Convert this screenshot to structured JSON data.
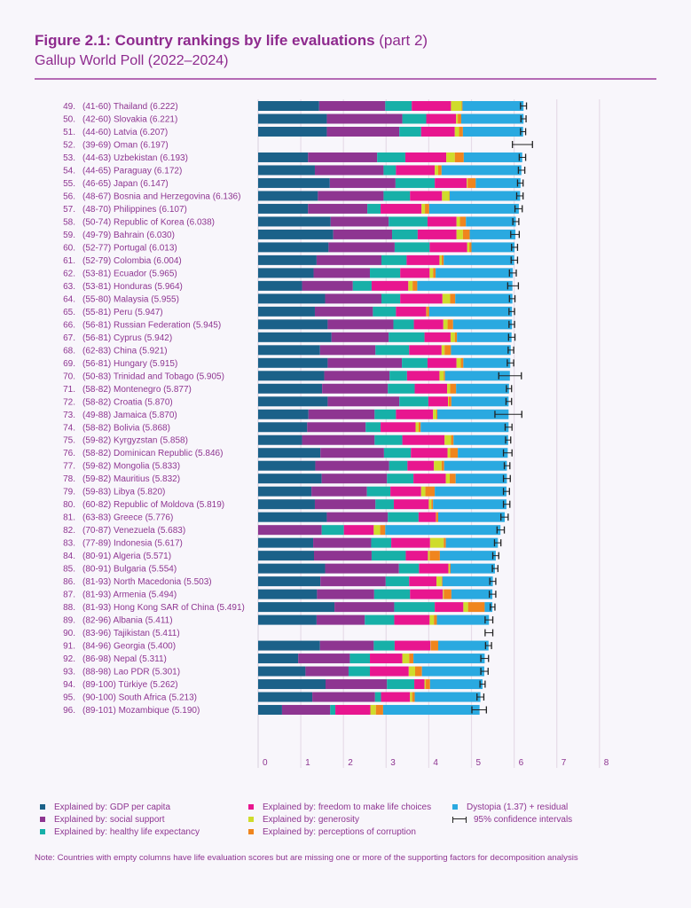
{
  "header": {
    "title_bold": "Figure 2.1: Country rankings by life evaluations",
    "title_part": "(part 2)",
    "subtitle": "Gallup World Poll (2022–2024)"
  },
  "colors": {
    "gdp": "#1b6189",
    "social": "#8e3591",
    "health": "#17b0a8",
    "freedom": "#e8168f",
    "generosity": "#cfdc2c",
    "corruption": "#f0851e",
    "dystopia": "#2aa9e0",
    "text": "#8e3591"
  },
  "legend": [
    {
      "key": "gdp",
      "label": "Explained by: GDP per capita"
    },
    {
      "key": "social",
      "label": "Explained by: social support"
    },
    {
      "key": "health",
      "label": "Explained by: healthy life expectancy"
    },
    {
      "key": "freedom",
      "label": "Explained by: freedom to make life choices"
    },
    {
      "key": "generosity",
      "label": "Explained by: generosity"
    },
    {
      "key": "corruption",
      "label": "Explained by: perceptions of corruption"
    },
    {
      "key": "dystopia",
      "label": "Dystopia (1.37) + residual"
    },
    {
      "key": "ci",
      "label": "95% confidence intervals"
    }
  ],
  "note": "Note: Countries with empty columns have life evaluation scores but are missing one or more of the supporting factors for decomposition analysis",
  "chart_data": {
    "type": "bar",
    "orientation": "horizontal",
    "stacked": true,
    "xlim": [
      0,
      8
    ],
    "xticks": [
      "0",
      "1",
      "2",
      "3",
      "4",
      "5",
      "6",
      "7",
      "8"
    ],
    "grid": true,
    "components": [
      "gdp",
      "social",
      "health",
      "freedom",
      "generosity",
      "corruption",
      "dystopia"
    ],
    "rows": [
      {
        "rank": "49.",
        "range": "(41-60)",
        "country": "Thailand",
        "score": "6.222",
        "v": [
          1.43,
          1.55,
          0.62,
          0.92,
          0.25,
          0.02,
          1.43
        ],
        "ci": [
          6.15,
          6.29
        ]
      },
      {
        "rank": "50.",
        "range": "(42-60)",
        "country": "Slovakia",
        "score": "6.221",
        "v": [
          1.61,
          1.77,
          0.56,
          0.7,
          0.04,
          0.08,
          1.46
        ],
        "ci": [
          6.16,
          6.28
        ]
      },
      {
        "rank": "51.",
        "range": "(44-60)",
        "country": "Latvia",
        "score": "6.207",
        "v": [
          1.61,
          1.7,
          0.51,
          0.79,
          0.1,
          0.09,
          1.41
        ],
        "ci": [
          6.15,
          6.27
        ]
      },
      {
        "rank": "52.",
        "range": "(39-69)",
        "country": "Oman",
        "score": "6.197",
        "v": null,
        "ci": [
          5.96,
          6.43
        ]
      },
      {
        "rank": "53.",
        "range": "(44-63)",
        "country": "Uzbekistan",
        "score": "6.193",
        "v": [
          1.17,
          1.62,
          0.66,
          0.96,
          0.2,
          0.21,
          1.37
        ],
        "ci": [
          6.12,
          6.27
        ]
      },
      {
        "rank": "54.",
        "range": "(44-65)",
        "country": "Paraguay",
        "score": "6.172",
        "v": [
          1.33,
          1.61,
          0.29,
          0.91,
          0.08,
          0.08,
          1.87
        ],
        "ci": [
          6.1,
          6.25
        ]
      },
      {
        "rank": "55.",
        "range": "(46-65)",
        "country": "Japan",
        "score": "6.147",
        "v": [
          1.68,
          1.54,
          0.92,
          0.75,
          0.02,
          0.19,
          1.05
        ],
        "ci": [
          6.08,
          6.21
        ]
      },
      {
        "rank": "56.",
        "range": "(48-67)",
        "country": "Bosnia and Herzegovina",
        "score": "6.136",
        "v": [
          1.4,
          1.54,
          0.62,
          0.75,
          0.17,
          0.01,
          1.65
        ],
        "ci": [
          6.06,
          6.21
        ]
      },
      {
        "rank": "57.",
        "range": "(48-70)",
        "country": "Philippines",
        "score": "6.107",
        "v": [
          1.17,
          1.39,
          0.31,
          0.96,
          0.08,
          0.1,
          2.1
        ],
        "ci": [
          6.02,
          6.19
        ]
      },
      {
        "rank": "58.",
        "range": "(50-74)",
        "country": "Republic of Korea",
        "score": "6.038",
        "v": [
          1.7,
          1.36,
          0.91,
          0.68,
          0.08,
          0.14,
          1.17
        ],
        "ci": [
          5.97,
          6.11
        ]
      },
      {
        "rank": "59.",
        "range": "(49-79)",
        "country": "Bahrain",
        "score": "6.030",
        "v": [
          1.76,
          1.38,
          0.6,
          0.91,
          0.15,
          0.16,
          1.07
        ],
        "ci": [
          5.92,
          6.12
        ]
      },
      {
        "rank": "60.",
        "range": "(52-77)",
        "country": "Portugal",
        "score": "6.013",
        "v": [
          1.65,
          1.55,
          0.82,
          0.88,
          0.05,
          0.05,
          1.01
        ],
        "ci": [
          5.94,
          6.08
        ]
      },
      {
        "rank": "61.",
        "range": "(52-79)",
        "country": "Colombia",
        "score": "6.004",
        "v": [
          1.37,
          1.52,
          0.59,
          0.77,
          0.05,
          0.05,
          1.65
        ],
        "ci": [
          5.93,
          6.08
        ]
      },
      {
        "rank": "62.",
        "range": "(53-81)",
        "country": "Ecuador",
        "score": "5.965",
        "v": [
          1.3,
          1.32,
          0.71,
          0.69,
          0.08,
          0.06,
          1.81
        ],
        "ci": [
          5.89,
          6.05
        ]
      },
      {
        "rank": "63.",
        "range": "(53-81)",
        "country": "Honduras",
        "score": "5.964",
        "v": [
          1.03,
          1.19,
          0.44,
          0.86,
          0.1,
          0.11,
          2.23
        ],
        "ci": [
          5.85,
          6.1
        ]
      },
      {
        "rank": "64.",
        "range": "(55-80)",
        "country": "Malaysia",
        "score": "5.955",
        "v": [
          1.57,
          1.32,
          0.44,
          0.99,
          0.18,
          0.12,
          1.34
        ],
        "ci": [
          5.89,
          6.02
        ]
      },
      {
        "rank": "65.",
        "range": "(55-81)",
        "country": "Peru",
        "score": "5.947",
        "v": [
          1.33,
          1.36,
          0.54,
          0.71,
          0.02,
          0.05,
          1.94
        ],
        "ci": [
          5.88,
          6.01
        ]
      },
      {
        "rank": "66.",
        "range": "(56-81)",
        "country": "Russian Federation",
        "score": "5.945",
        "v": [
          1.63,
          1.54,
          0.48,
          0.69,
          0.1,
          0.13,
          1.38
        ],
        "ci": [
          5.88,
          6.01
        ]
      },
      {
        "rank": "67.",
        "range": "(56-81)",
        "country": "Cyprus",
        "score": "5.942",
        "v": [
          1.72,
          1.34,
          0.84,
          0.61,
          0.1,
          0.05,
          1.28
        ],
        "ci": [
          5.87,
          6.02
        ]
      },
      {
        "rank": "68.",
        "range": "(62-83)",
        "country": "China",
        "score": "5.921",
        "v": [
          1.45,
          1.3,
          0.79,
          0.76,
          0.07,
          0.15,
          1.4
        ],
        "ci": [
          5.86,
          5.99
        ]
      },
      {
        "rank": "69.",
        "range": "(56-81)",
        "country": "Hungary",
        "score": "5.915",
        "v": [
          1.63,
          1.74,
          0.6,
          0.68,
          0.1,
          0.06,
          1.1
        ],
        "ci": [
          5.84,
          5.99
        ]
      },
      {
        "rank": "70.",
        "range": "(50-83)",
        "country": "Trinidad and Tobago",
        "score": "5.905",
        "v": [
          1.55,
          1.53,
          0.41,
          0.76,
          0.1,
          0.03,
          1.52
        ],
        "ci": [
          5.64,
          6.17
        ]
      },
      {
        "rank": "71.",
        "range": "(58-82)",
        "country": "Montenegro",
        "score": "5.877",
        "v": [
          1.5,
          1.54,
          0.63,
          0.76,
          0.07,
          0.14,
          1.24
        ],
        "ci": [
          5.82,
          5.94
        ]
      },
      {
        "rank": "72.",
        "range": "(58-82)",
        "country": "Croatia",
        "score": "5.870",
        "v": [
          1.63,
          1.68,
          0.68,
          0.46,
          0.02,
          0.06,
          1.34
        ],
        "ci": [
          5.81,
          5.94
        ]
      },
      {
        "rank": "73.",
        "range": "(49-88)",
        "country": "Jamaica",
        "score": "5.870",
        "v": [
          1.18,
          1.55,
          0.5,
          0.87,
          0.08,
          0.02,
          1.67
        ],
        "ci": [
          5.55,
          6.18
        ]
      },
      {
        "rank": "74.",
        "range": "(58-82)",
        "country": "Bolivia",
        "score": "5.868",
        "v": [
          1.15,
          1.37,
          0.35,
          0.82,
          0.07,
          0.05,
          2.06
        ],
        "ci": [
          5.79,
          5.95
        ]
      },
      {
        "rank": "75.",
        "range": "(59-82)",
        "country": "Kyrgyzstan",
        "score": "5.858",
        "v": [
          1.03,
          1.7,
          0.65,
          0.99,
          0.15,
          0.06,
          1.28
        ],
        "ci": [
          5.8,
          5.92
        ]
      },
      {
        "rank": "76.",
        "range": "(58-82)",
        "country": "Dominican Republic",
        "score": "5.846",
        "v": [
          1.46,
          1.49,
          0.63,
          0.86,
          0.06,
          0.18,
          1.17
        ],
        "ci": [
          5.75,
          5.95
        ]
      },
      {
        "rank": "77.",
        "range": "(59-82)",
        "country": "Mongolia",
        "score": "5.833",
        "v": [
          1.34,
          1.73,
          0.43,
          0.62,
          0.18,
          0.06,
          1.47
        ],
        "ci": [
          5.77,
          5.9
        ]
      },
      {
        "rank": "78.",
        "range": "(59-82)",
        "country": "Mauritius",
        "score": "5.832",
        "v": [
          1.49,
          1.53,
          0.62,
          0.76,
          0.09,
          0.14,
          1.2
        ],
        "ci": [
          5.75,
          5.91
        ]
      },
      {
        "rank": "79.",
        "range": "(59-83)",
        "country": "Libya",
        "score": "5.820",
        "v": [
          1.25,
          1.3,
          0.55,
          0.72,
          0.1,
          0.22,
          1.68
        ],
        "ci": [
          5.75,
          5.89
        ]
      },
      {
        "rank": "80.",
        "range": "(60-82)",
        "country": "Republic of Moldova",
        "score": "5.819",
        "v": [
          1.33,
          1.42,
          0.43,
          0.82,
          0.06,
          0.04,
          1.72
        ],
        "ci": [
          5.75,
          5.9
        ]
      },
      {
        "rank": "81.",
        "range": "(63-83)",
        "country": "Greece",
        "score": "5.776",
        "v": [
          1.61,
          1.43,
          0.72,
          0.41,
          0.01,
          0.04,
          1.56
        ],
        "ci": [
          5.69,
          5.86
        ]
      },
      {
        "rank": "82.",
        "range": "(70-87)",
        "country": "Venezuela",
        "score": "5.683",
        "v": [
          0,
          1.49,
          0.52,
          0.7,
          0.15,
          0.12,
          2.7
        ],
        "ci": [
          5.6,
          5.77
        ]
      },
      {
        "rank": "83.",
        "range": "(77-89)",
        "country": "Indonesia",
        "score": "5.617",
        "v": [
          1.29,
          1.36,
          0.47,
          0.91,
          0.32,
          0.05,
          1.22
        ],
        "ci": [
          5.54,
          5.69
        ]
      },
      {
        "rank": "84.",
        "range": "(80-91)",
        "country": "Algeria",
        "score": "5.571",
        "v": [
          1.31,
          1.35,
          0.8,
          0.52,
          0.04,
          0.24,
          1.31
        ],
        "ci": [
          5.5,
          5.64
        ]
      },
      {
        "rank": "85.",
        "range": "(80-91)",
        "country": "Bulgaria",
        "score": "5.554",
        "v": [
          1.57,
          1.73,
          0.47,
          0.69,
          0.03,
          0.02,
          1.04
        ],
        "ci": [
          5.49,
          5.62
        ]
      },
      {
        "rank": "86.",
        "range": "(81-93)",
        "country": "North Macedonia",
        "score": "5.503",
        "v": [
          1.46,
          1.53,
          0.55,
          0.64,
          0.12,
          0.02,
          1.18
        ],
        "ci": [
          5.43,
          5.57
        ]
      },
      {
        "rank": "87.",
        "range": "(81-93)",
        "country": "Armenia",
        "score": "5.494",
        "v": [
          1.38,
          1.34,
          0.84,
          0.77,
          0.02,
          0.18,
          0.96
        ],
        "ci": [
          5.42,
          5.57
        ]
      },
      {
        "rank": "88.",
        "range": "(81-93)",
        "country": "Hong Kong SAR of China",
        "score": "5.491",
        "v": [
          1.79,
          1.4,
          0.95,
          0.67,
          0.11,
          0.39,
          0.18
        ],
        "ci": [
          5.44,
          5.55
        ]
      },
      {
        "rank": "89.",
        "range": "(82-96)",
        "country": "Albania",
        "score": "5.411",
        "v": [
          1.37,
          1.13,
          0.69,
          0.83,
          0.1,
          0.07,
          1.22
        ],
        "ci": [
          5.32,
          5.5
        ]
      },
      {
        "rank": "90.",
        "range": "(83-96)",
        "country": "Tajikistan",
        "score": "5.411",
        "v": null,
        "ci": [
          5.32,
          5.5
        ]
      },
      {
        "rank": "91.",
        "range": "(84-96)",
        "country": "Georgia",
        "score": "5.400",
        "v": [
          1.45,
          1.26,
          0.49,
          0.84,
          0.01,
          0.17,
          1.18
        ],
        "ci": [
          5.33,
          5.47
        ]
      },
      {
        "rank": "92.",
        "range": "(86-98)",
        "country": "Nepal",
        "score": "5.311",
        "v": [
          0.94,
          1.21,
          0.47,
          0.76,
          0.16,
          0.1,
          1.67
        ],
        "ci": [
          5.22,
          5.4
        ]
      },
      {
        "rank": "93.",
        "range": "(88-98)",
        "country": "Lao PDR",
        "score": "5.301",
        "v": [
          1.11,
          1.01,
          0.5,
          0.91,
          0.15,
          0.16,
          1.46
        ],
        "ci": [
          5.22,
          5.39
        ]
      },
      {
        "rank": "94.",
        "range": "(89-100)",
        "country": "Türkiye",
        "score": "5.262",
        "v": [
          1.58,
          1.44,
          0.64,
          0.24,
          0.03,
          0.1,
          1.23
        ],
        "ci": [
          5.2,
          5.32
        ]
      },
      {
        "rank": "95.",
        "range": "(90-100)",
        "country": "South Africa",
        "score": "5.213",
        "v": [
          1.27,
          1.47,
          0.14,
          0.68,
          0.05,
          0.06,
          1.54
        ],
        "ci": [
          5.13,
          5.29
        ]
      },
      {
        "rank": "96.",
        "range": "(89-101)",
        "country": "Mozambique",
        "score": "5.190",
        "v": [
          0.56,
          1.13,
          0.12,
          0.82,
          0.13,
          0.17,
          2.26
        ],
        "ci": [
          5.01,
          5.35
        ]
      }
    ]
  }
}
